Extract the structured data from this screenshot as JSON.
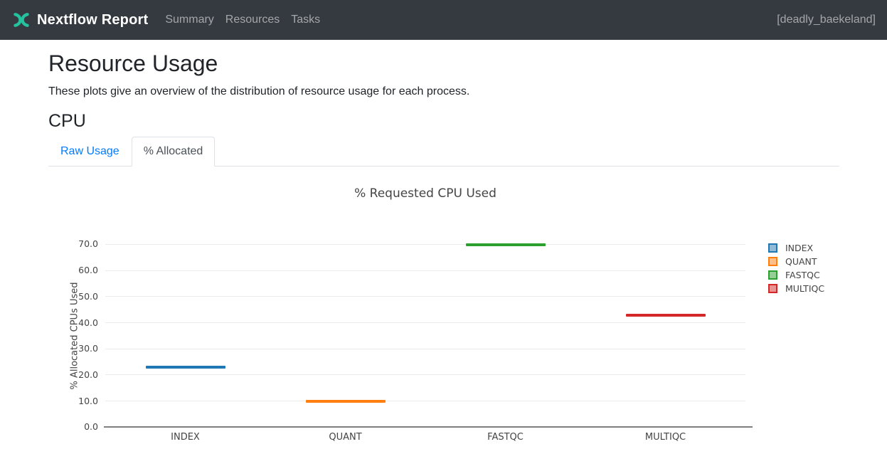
{
  "navbar": {
    "brand": "Nextflow Report",
    "items": [
      {
        "label": "Summary"
      },
      {
        "label": "Resources"
      },
      {
        "label": "Tasks"
      }
    ],
    "run_name": "[deadly_baekeland]",
    "logo_color": "#25c2a0",
    "bg_color": "#343a40"
  },
  "page": {
    "title": "Resource Usage",
    "description": "These plots give an overview of the distribution of resource usage for each process.",
    "section_title": "CPU"
  },
  "tabs": [
    {
      "label": "Raw Usage",
      "active": false
    },
    {
      "label": "% Allocated",
      "active": true
    }
  ],
  "chart_data": {
    "type": "box",
    "title": "% Requested CPU Used",
    "xlabel": "",
    "ylabel": "% Allocated CPUs Used",
    "categories": [
      "INDEX",
      "QUANT",
      "FASTQC",
      "MULTIQC"
    ],
    "values": [
      22.9,
      9.8,
      69.8,
      42.8
    ],
    "colors": [
      "#1f77b4",
      "#ff7f0e",
      "#2ca02c",
      "#d62728"
    ],
    "legend_fill_colors": [
      "#8fbbd9",
      "#ffbf86",
      "#95cf95",
      "#ea9393"
    ],
    "legend": [
      "INDEX",
      "QUANT",
      "FASTQC",
      "MULTIQC"
    ],
    "legend_position": "right",
    "ylim": [
      0,
      75
    ],
    "yticks": [
      0,
      10,
      20,
      30,
      40,
      50,
      60,
      70
    ],
    "ytick_format": "one-decimal",
    "grid": true
  }
}
